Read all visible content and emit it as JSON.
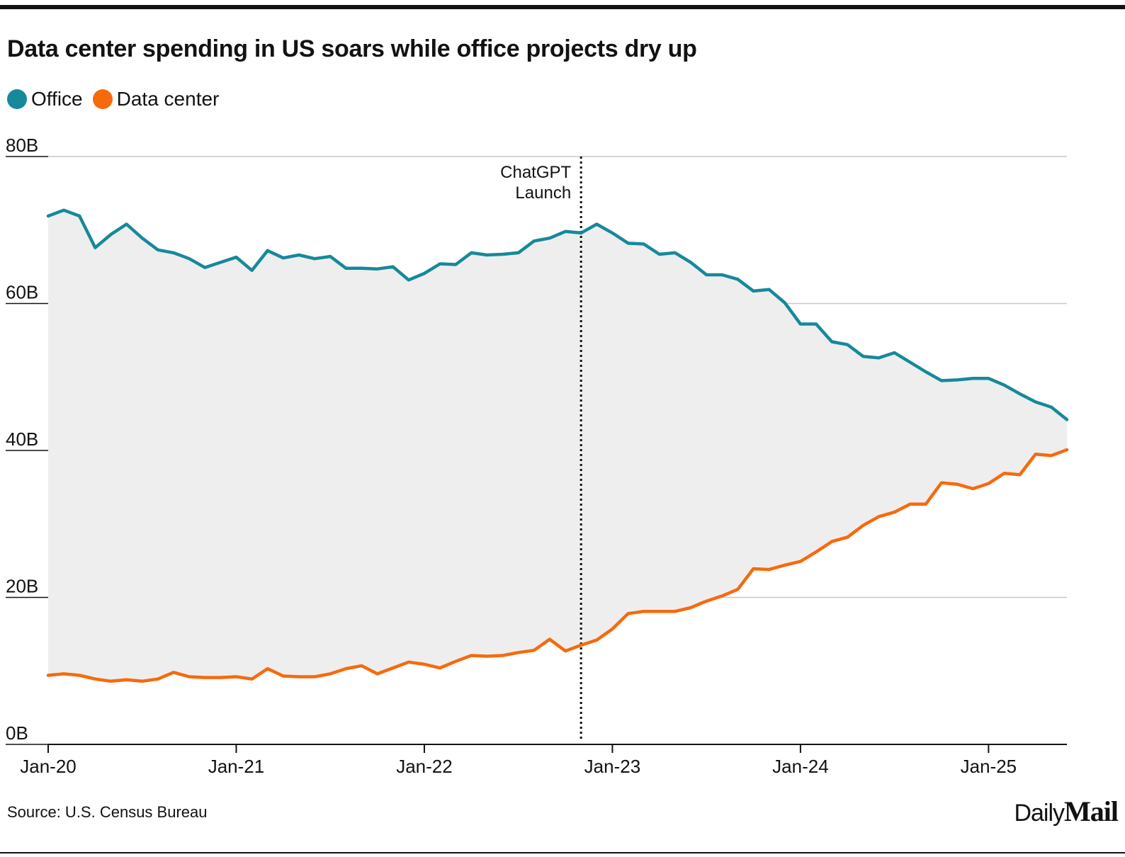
{
  "title": "Data center spending in US soars while office projects dry up",
  "source": "Source: U.S. Census Bureau",
  "brand": {
    "daily": "Daily",
    "mail": "Mail"
  },
  "colors": {
    "office": "#16899A",
    "data_center": "#F76A0C",
    "fill": "#EEEEEE",
    "grid": "#C8C8C8",
    "axis": "#121212"
  },
  "chart_data": {
    "type": "line",
    "title": "Data center spending in US soars while office projects dry up",
    "xlabel": "",
    "ylabel": "",
    "ylim": [
      0,
      80
    ],
    "grid": true,
    "legend_position": "top-left",
    "fill_between_series": true,
    "yticks": [
      {
        "value": 0,
        "label": "0B"
      },
      {
        "value": 20,
        "label": "20B"
      },
      {
        "value": 40,
        "label": "40B"
      },
      {
        "value": 60,
        "label": "60B"
      },
      {
        "value": 80,
        "label": "80B"
      }
    ],
    "xticks": [
      {
        "date": "2020-01",
        "label": "Jan-20"
      },
      {
        "date": "2021-01",
        "label": "Jan-21"
      },
      {
        "date": "2022-01",
        "label": "Jan-22"
      },
      {
        "date": "2023-01",
        "label": "Jan-23"
      },
      {
        "date": "2024-01",
        "label": "Jan-24"
      },
      {
        "date": "2025-01",
        "label": "Jan-25"
      }
    ],
    "annotation": {
      "date": "2022-11",
      "lines": [
        "ChatGPT",
        "Launch"
      ]
    },
    "x": [
      "2020-01",
      "2020-02",
      "2020-03",
      "2020-04",
      "2020-05",
      "2020-06",
      "2020-07",
      "2020-08",
      "2020-09",
      "2020-10",
      "2020-11",
      "2020-12",
      "2021-01",
      "2021-02",
      "2021-03",
      "2021-04",
      "2021-05",
      "2021-06",
      "2021-07",
      "2021-08",
      "2021-09",
      "2021-10",
      "2021-11",
      "2021-12",
      "2022-01",
      "2022-02",
      "2022-03",
      "2022-04",
      "2022-05",
      "2022-06",
      "2022-07",
      "2022-08",
      "2022-09",
      "2022-10",
      "2022-11",
      "2022-12",
      "2023-01",
      "2023-02",
      "2023-03",
      "2023-04",
      "2023-05",
      "2023-06",
      "2023-07",
      "2023-08",
      "2023-09",
      "2023-10",
      "2023-11",
      "2023-12",
      "2024-01",
      "2024-02",
      "2024-03",
      "2024-04",
      "2024-05",
      "2024-06",
      "2024-07",
      "2024-08",
      "2024-09",
      "2024-10",
      "2024-11",
      "2024-12",
      "2025-01",
      "2025-02",
      "2025-03",
      "2025-04",
      "2025-05",
      "2025-06"
    ],
    "series": [
      {
        "name": "Office",
        "color": "#16899A",
        "values": [
          71.9,
          72.7,
          71.9,
          67.6,
          69.4,
          70.8,
          68.9,
          67.3,
          66.9,
          66.1,
          64.9,
          65.6,
          66.3,
          64.5,
          67.2,
          66.2,
          66.6,
          66.1,
          66.4,
          64.8,
          64.8,
          64.7,
          65.0,
          63.2,
          64.1,
          65.4,
          65.3,
          66.9,
          66.6,
          66.7,
          66.9,
          68.5,
          68.9,
          69.8,
          69.6,
          70.8,
          69.6,
          68.2,
          68.1,
          66.7,
          66.9,
          65.6,
          63.9,
          63.9,
          63.3,
          61.7,
          61.9,
          60.1,
          57.2,
          57.2,
          54.8,
          54.4,
          52.8,
          52.6,
          53.3,
          52.0,
          50.7,
          49.5,
          49.6,
          49.8,
          49.8,
          48.9,
          47.7,
          46.6,
          45.9,
          44.2
        ]
      },
      {
        "name": "Data center",
        "color": "#F76A0C",
        "values": [
          9.4,
          9.6,
          9.4,
          8.9,
          8.6,
          8.8,
          8.6,
          8.9,
          9.8,
          9.2,
          9.1,
          9.1,
          9.2,
          8.9,
          10.3,
          9.3,
          9.2,
          9.2,
          9.6,
          10.3,
          10.7,
          9.6,
          10.4,
          11.2,
          10.9,
          10.4,
          11.3,
          12.1,
          12.0,
          12.1,
          12.5,
          12.8,
          14.3,
          12.7,
          13.5,
          14.2,
          15.7,
          17.8,
          18.1,
          18.1,
          18.1,
          18.6,
          19.5,
          20.2,
          21.1,
          23.9,
          23.8,
          24.4,
          24.9,
          26.2,
          27.6,
          28.2,
          29.8,
          31.0,
          31.6,
          32.7,
          32.7,
          35.6,
          35.4,
          34.8,
          35.5,
          36.9,
          36.7,
          39.5,
          39.3,
          40.1
        ]
      }
    ]
  }
}
